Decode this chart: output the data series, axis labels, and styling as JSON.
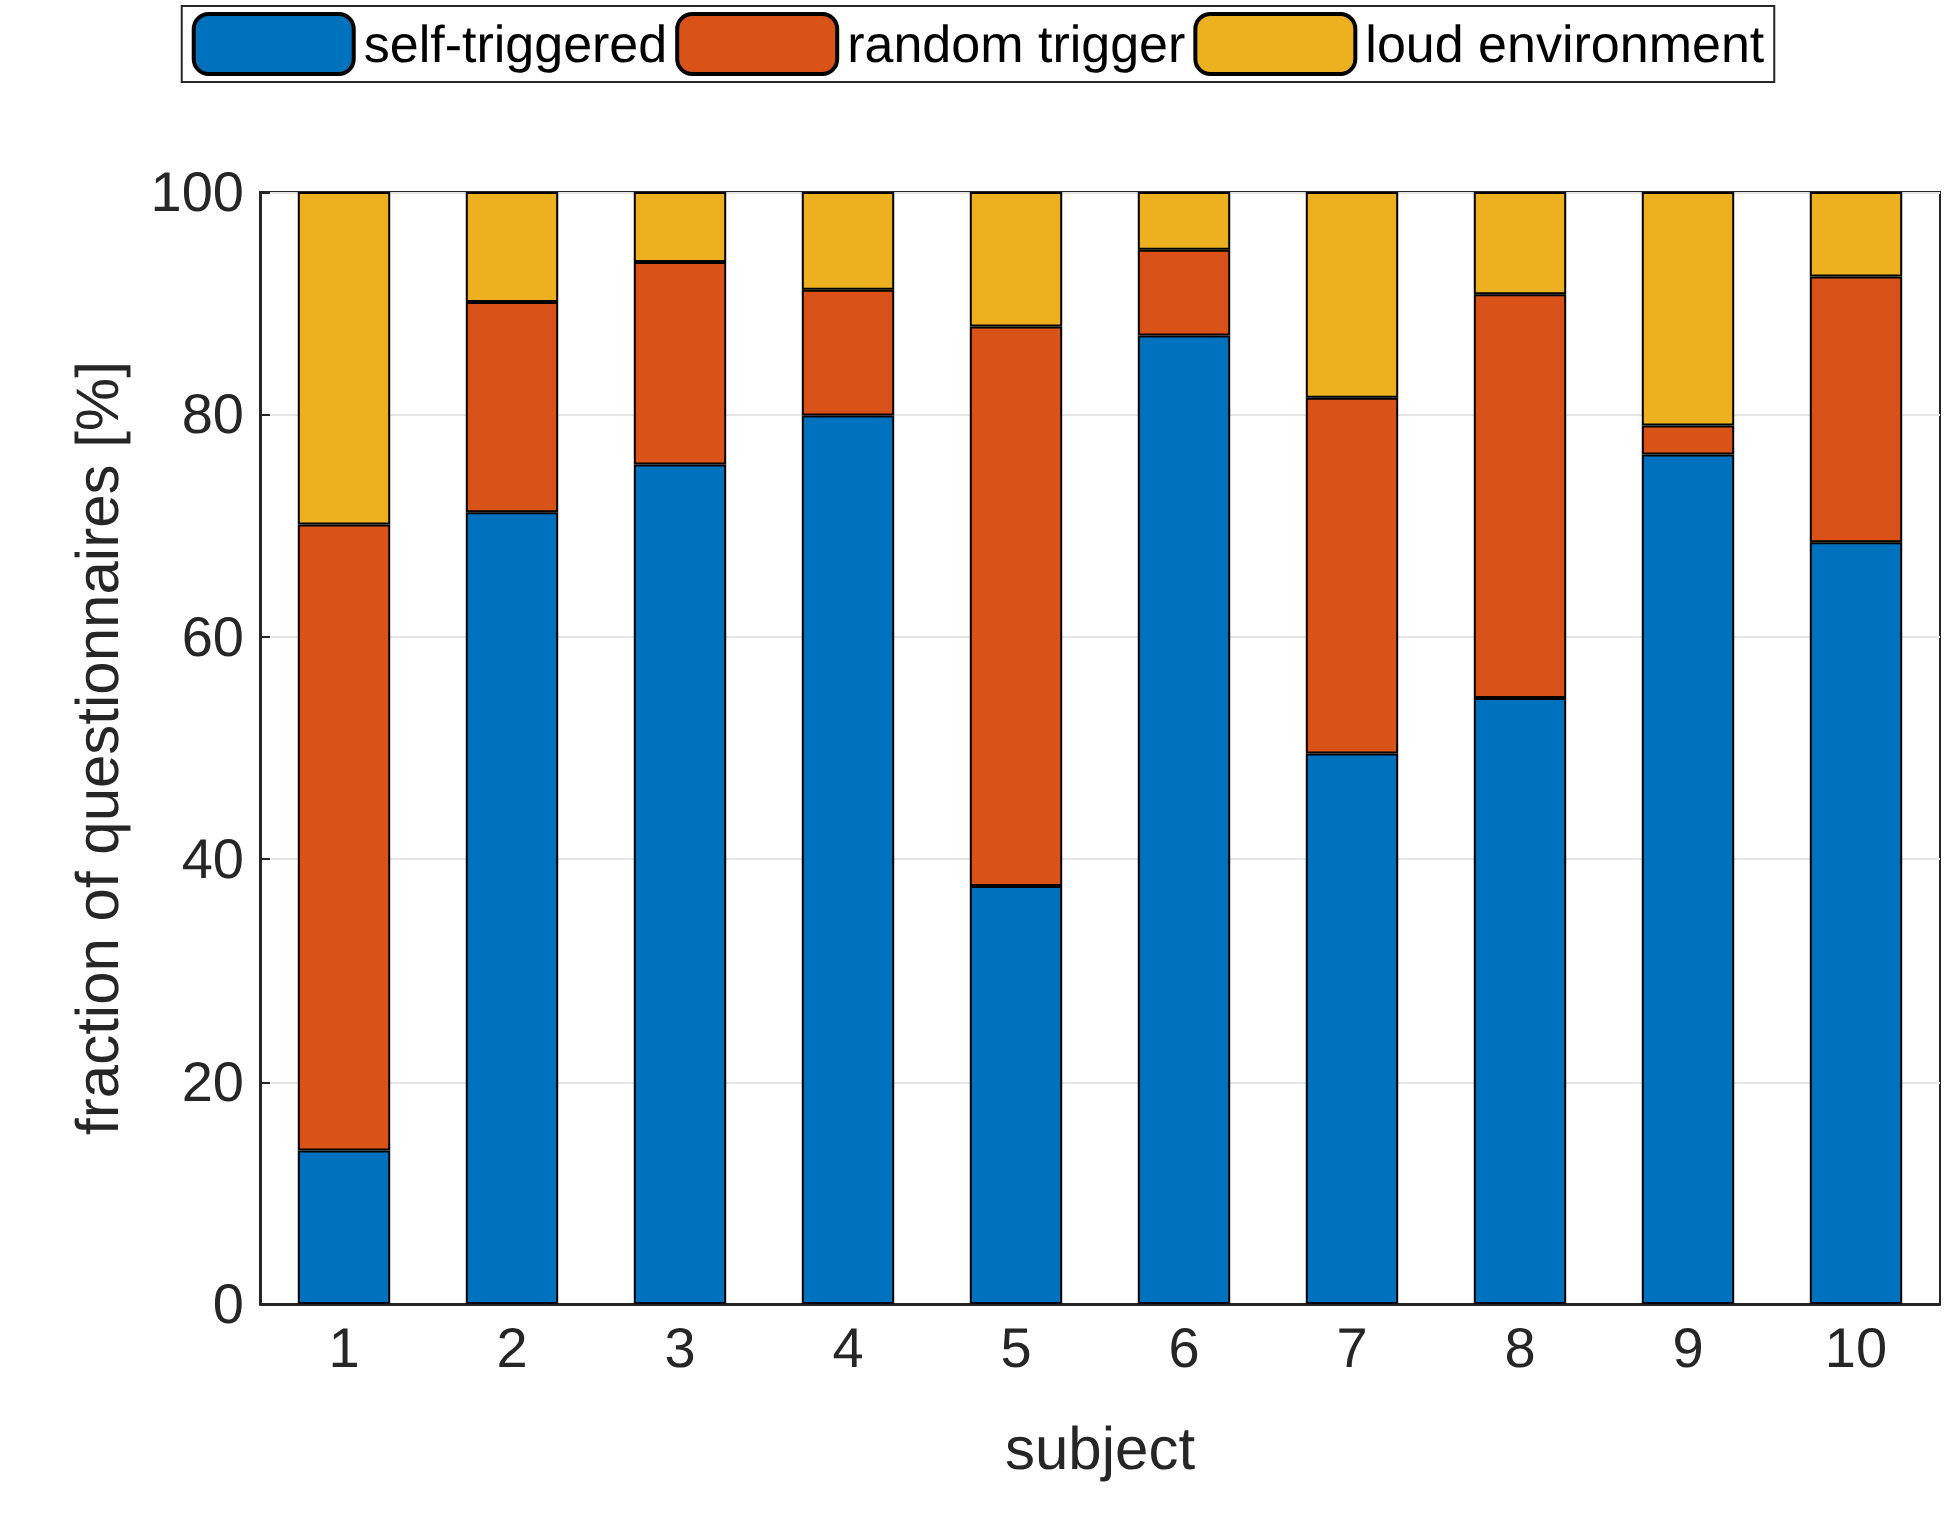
{
  "chart_data": {
    "type": "bar",
    "stacked": true,
    "xlabel": "subject",
    "ylabel": "fraction of questionnaires [%]",
    "categories": [
      "1",
      "2",
      "3",
      "4",
      "5",
      "6",
      "7",
      "8",
      "9",
      "10"
    ],
    "series": [
      {
        "name": "self-triggered",
        "color": "#0072bd",
        "values": [
          13.8,
          71.2,
          75.5,
          79.9,
          37.6,
          87.1,
          49.5,
          54.5,
          76.4,
          68.5
        ]
      },
      {
        "name": "random trigger",
        "color": "#d95319",
        "values": [
          56.3,
          18.9,
          18.2,
          11.3,
          50.3,
          7.7,
          32.0,
          36.3,
          2.6,
          23.9
        ]
      },
      {
        "name": "loud environment",
        "color": "#edb120",
        "values": [
          29.9,
          9.9,
          6.3,
          8.8,
          12.1,
          5.2,
          18.5,
          9.2,
          21.0,
          7.6
        ]
      }
    ],
    "ylim": [
      0,
      100
    ],
    "yticks": [
      0,
      20,
      40,
      60,
      80,
      100
    ],
    "grid": "y",
    "legend": "top"
  }
}
